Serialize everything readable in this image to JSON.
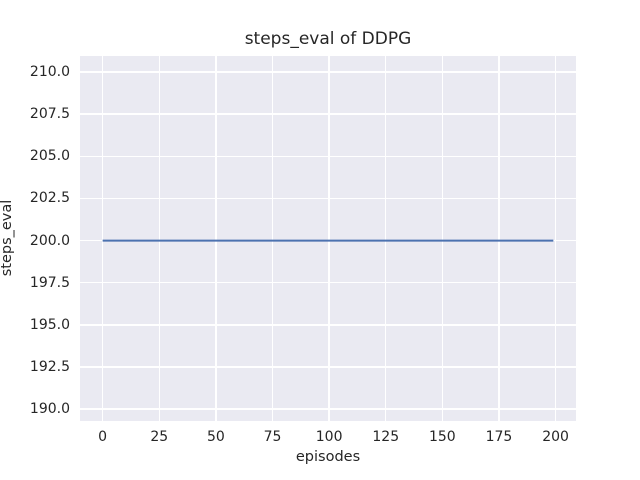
{
  "colors": {
    "figure_bg": "#ffffff",
    "axes_bg": "#eaeaf2",
    "grid": "#ffffff",
    "line": "#4c72b0",
    "text": "#262626"
  },
  "chart_data": {
    "type": "line",
    "title": "steps_eval of DDPG",
    "xlabel": "episodes",
    "ylabel": "steps_eval",
    "series": [
      {
        "name": "steps_eval",
        "x": [
          0,
          199
        ],
        "y": [
          200,
          200
        ]
      }
    ],
    "xticks": [
      0,
      25,
      50,
      75,
      100,
      125,
      150,
      175,
      200
    ],
    "xtick_labels": [
      "0",
      "25",
      "50",
      "75",
      "100",
      "125",
      "150",
      "175",
      "200"
    ],
    "yticks": [
      190.0,
      192.5,
      195.0,
      197.5,
      200.0,
      202.5,
      205.0,
      207.5,
      210.0
    ],
    "ytick_labels": [
      "190.0",
      "192.5",
      "195.0",
      "197.5",
      "200.0",
      "202.5",
      "205.0",
      "207.5",
      "210.0"
    ],
    "xlim": [
      -10,
      209
    ],
    "ylim": [
      189.3,
      210.95
    ],
    "grid": true,
    "legend": false
  }
}
